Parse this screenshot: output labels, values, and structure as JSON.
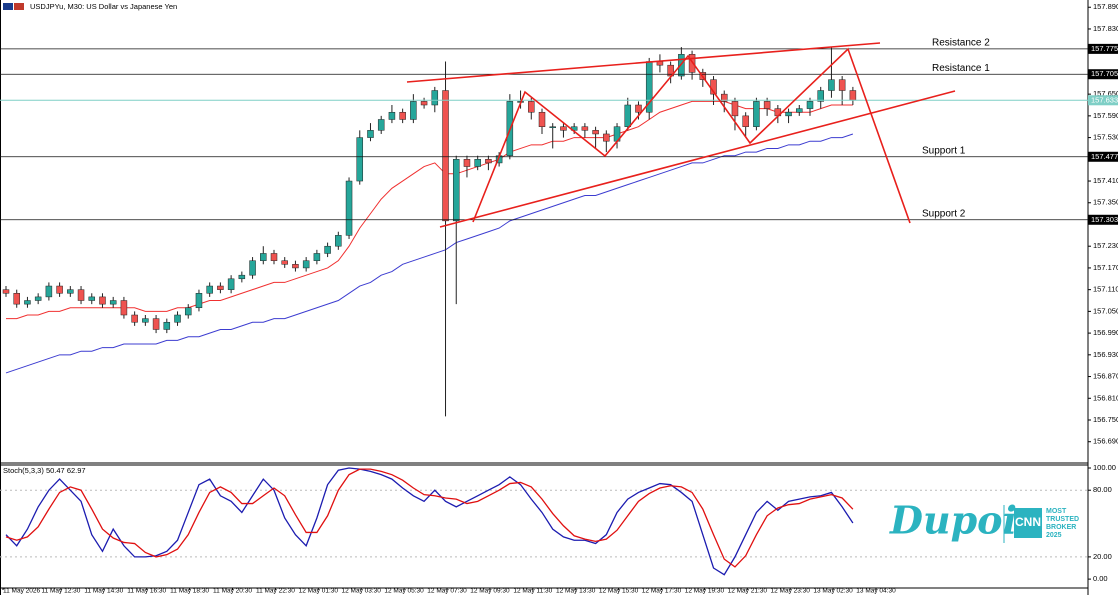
{
  "chart_data": [
    {
      "type": "candlestick",
      "title": "USDJPYu, M30: US Dollar vs Japanese Yen",
      "up_color": "#26a69a",
      "down_color": "#ef5350",
      "ylim": [
        156.634,
        157.91
      ],
      "yticks": [
        {
          "value": 157.89,
          "label": "157.890"
        },
        {
          "value": 157.83,
          "label": "157.830"
        },
        {
          "value": 157.65,
          "label": "157.650"
        },
        {
          "value": 157.59,
          "label": "157.590"
        },
        {
          "value": 157.53,
          "label": "157.530"
        },
        {
          "value": 157.41,
          "label": "157.410"
        },
        {
          "value": 157.35,
          "label": "157.350"
        },
        {
          "value": 157.23,
          "label": "157.230"
        },
        {
          "value": 157.17,
          "label": "157.170"
        },
        {
          "value": 157.11,
          "label": "157.110"
        },
        {
          "value": 157.05,
          "label": "157.050"
        },
        {
          "value": 156.99,
          "label": "156.990"
        },
        {
          "value": 156.93,
          "label": "156.930"
        },
        {
          "value": 156.87,
          "label": "156.870"
        },
        {
          "value": 156.81,
          "label": "156.810"
        },
        {
          "value": 156.75,
          "label": "156.750"
        },
        {
          "value": 156.69,
          "label": "156.690"
        }
      ],
      "x_labels": [
        "11 May 2026",
        "11 May 12:30",
        "11 May 14:30",
        "11 May 16:30",
        "11 May 18:30",
        "11 May 20:30",
        "11 May 22:30",
        "12 May 01:30",
        "12 May 03:30",
        "12 May 05:30",
        "12 May 07:30",
        "12 May 09:30",
        "12 May 11:30",
        "12 May 13:30",
        "12 May 15:30",
        "12 May 17:30",
        "12 May 19:30",
        "12 May 21:30",
        "12 May 23:30",
        "13 May 02:30",
        "13 May 04:30"
      ],
      "open": [
        157.11,
        157.1,
        157.07,
        157.08,
        157.09,
        157.12,
        157.1,
        157.11,
        157.08,
        157.09,
        157.07,
        157.08,
        157.04,
        157.02,
        157.03,
        157.0,
        157.02,
        157.04,
        157.06,
        157.1,
        157.12,
        157.11,
        157.14,
        157.15,
        157.19,
        157.21,
        157.19,
        157.18,
        157.17,
        157.19,
        157.21,
        157.23,
        157.26,
        157.41,
        157.53,
        157.55,
        157.58,
        157.6,
        157.58,
        157.63,
        157.62,
        157.66,
        157.3,
        157.47,
        157.45,
        157.47,
        157.46,
        157.48,
        157.63,
        157.63,
        157.6,
        157.56,
        157.56,
        157.55,
        157.56,
        157.55,
        157.54,
        157.52,
        157.56,
        157.62,
        157.6,
        157.74,
        157.73,
        157.7,
        157.76,
        157.71,
        157.69,
        157.65,
        157.63,
        157.59,
        157.56,
        157.63,
        157.61,
        157.59,
        157.6,
        157.61,
        157.63,
        157.66,
        157.69,
        157.66
      ],
      "high": [
        157.12,
        157.11,
        157.09,
        157.1,
        157.13,
        157.13,
        157.12,
        157.12,
        157.1,
        157.1,
        157.09,
        157.09,
        157.05,
        157.04,
        157.04,
        157.03,
        157.05,
        157.07,
        157.11,
        157.13,
        157.13,
        157.15,
        157.16,
        157.2,
        157.23,
        157.22,
        157.2,
        157.19,
        157.2,
        157.22,
        157.24,
        157.27,
        157.42,
        157.55,
        157.57,
        157.59,
        157.62,
        157.61,
        157.65,
        157.64,
        157.67,
        157.74,
        157.48,
        157.48,
        157.48,
        157.48,
        157.49,
        157.65,
        157.66,
        157.64,
        157.61,
        157.57,
        157.57,
        157.57,
        157.57,
        157.56,
        157.55,
        157.57,
        157.64,
        157.63,
        157.75,
        157.76,
        157.74,
        157.78,
        157.77,
        157.72,
        157.7,
        157.66,
        157.64,
        157.6,
        157.64,
        157.64,
        157.62,
        157.61,
        157.62,
        157.64,
        157.67,
        157.78,
        157.7,
        157.67
      ],
      "low": [
        157.09,
        157.06,
        157.06,
        157.07,
        157.08,
        157.09,
        157.09,
        157.07,
        157.07,
        157.06,
        157.06,
        157.03,
        157.01,
        157.01,
        156.99,
        156.99,
        157.01,
        157.03,
        157.05,
        157.09,
        157.1,
        157.1,
        157.13,
        157.14,
        157.18,
        157.18,
        157.17,
        157.16,
        157.16,
        157.18,
        157.2,
        157.22,
        157.25,
        157.4,
        157.52,
        157.54,
        157.57,
        157.57,
        157.57,
        157.61,
        157.6,
        156.76,
        157.07,
        157.42,
        157.44,
        157.44,
        157.45,
        157.47,
        157.61,
        157.58,
        157.54,
        157.5,
        157.53,
        157.54,
        157.53,
        157.5,
        157.49,
        157.5,
        157.55,
        157.58,
        157.58,
        157.71,
        157.68,
        157.69,
        157.69,
        157.67,
        157.62,
        157.6,
        157.55,
        157.53,
        157.55,
        157.59,
        157.57,
        157.57,
        157.59,
        157.59,
        157.61,
        157.64,
        157.62,
        157.62
      ],
      "close": [
        157.1,
        157.07,
        157.08,
        157.09,
        157.12,
        157.1,
        157.11,
        157.08,
        157.09,
        157.07,
        157.08,
        157.04,
        157.02,
        157.03,
        157.0,
        157.02,
        157.04,
        157.06,
        157.1,
        157.12,
        157.11,
        157.14,
        157.15,
        157.19,
        157.21,
        157.19,
        157.18,
        157.17,
        157.19,
        157.21,
        157.23,
        157.26,
        157.41,
        157.53,
        157.55,
        157.58,
        157.6,
        157.58,
        157.63,
        157.62,
        157.66,
        157.3,
        157.47,
        157.45,
        157.47,
        157.46,
        157.48,
        157.63,
        157.63,
        157.6,
        157.56,
        157.56,
        157.55,
        157.56,
        157.55,
        157.54,
        157.52,
        157.56,
        157.62,
        157.6,
        157.74,
        157.73,
        157.7,
        157.76,
        157.71,
        157.69,
        157.65,
        157.63,
        157.59,
        157.56,
        157.63,
        157.61,
        157.59,
        157.6,
        157.61,
        157.63,
        157.66,
        157.69,
        157.66,
        157.633
      ],
      "moving_averages": [
        {
          "color": "#f03030",
          "values": [
            157.03,
            157.03,
            157.04,
            157.04,
            157.05,
            157.05,
            157.06,
            157.06,
            157.06,
            157.06,
            157.06,
            157.06,
            157.06,
            157.05,
            157.05,
            157.05,
            157.06,
            157.06,
            157.07,
            157.08,
            157.08,
            157.09,
            157.1,
            157.11,
            157.12,
            157.13,
            157.13,
            157.14,
            157.15,
            157.16,
            157.17,
            157.19,
            157.23,
            157.28,
            157.32,
            157.36,
            157.39,
            157.41,
            157.43,
            157.45,
            157.46,
            157.43,
            157.43,
            157.44,
            157.45,
            157.46,
            157.47,
            157.49,
            157.5,
            157.51,
            157.51,
            157.52,
            157.52,
            157.53,
            157.53,
            157.53,
            157.53,
            157.54,
            157.55,
            157.56,
            157.58,
            157.6,
            157.61,
            157.62,
            157.63,
            157.63,
            157.63,
            157.63,
            157.62,
            157.61,
            157.61,
            157.61,
            157.6,
            157.6,
            157.6,
            157.6,
            157.61,
            157.62,
            157.62,
            157.62
          ]
        },
        {
          "color": "#3c3cd0",
          "values": [
            156.88,
            156.89,
            156.9,
            156.91,
            156.92,
            156.93,
            156.93,
            156.94,
            156.94,
            156.95,
            156.95,
            156.96,
            156.96,
            156.96,
            156.96,
            156.97,
            156.97,
            156.98,
            156.98,
            156.99,
            157.0,
            157.0,
            157.01,
            157.02,
            157.02,
            157.03,
            157.03,
            157.04,
            157.05,
            157.06,
            157.07,
            157.08,
            157.1,
            157.12,
            157.13,
            157.15,
            157.16,
            157.18,
            157.19,
            157.2,
            157.21,
            157.22,
            157.24,
            157.25,
            157.26,
            157.27,
            157.28,
            157.3,
            157.31,
            157.32,
            157.33,
            157.34,
            157.35,
            157.36,
            157.37,
            157.37,
            157.38,
            157.39,
            157.4,
            157.41,
            157.42,
            157.43,
            157.44,
            157.45,
            157.46,
            157.46,
            157.47,
            157.48,
            157.48,
            157.49,
            157.49,
            157.5,
            157.5,
            157.51,
            157.51,
            157.52,
            157.52,
            157.53,
            157.53,
            157.54
          ]
        }
      ],
      "levels": [
        {
          "label": "Resistance 2",
          "value": 157.775
        },
        {
          "label": "Resistance 1",
          "value": 157.705
        },
        {
          "label": "Support 1",
          "value": 157.477
        },
        {
          "label": "Support 2",
          "value": 157.303
        }
      ],
      "current_price": 157.633,
      "current_color": "#7fcfc6"
    },
    {
      "type": "line",
      "title": "Stoch(5,3,3)",
      "ylim": [
        -8,
        102.7
      ],
      "yticks": [
        {
          "value": 100,
          "label": "100.00"
        },
        {
          "value": 80,
          "label": "80.00"
        },
        {
          "value": 20,
          "label": "20.00"
        },
        {
          "value": 0,
          "label": "0.00"
        }
      ],
      "series": [
        {
          "color": "#1c1cb0",
          "values": [
            40,
            30,
            45,
            65,
            80,
            90,
            80,
            70,
            40,
            25,
            45,
            30,
            20,
            20,
            21,
            25,
            35,
            60,
            85,
            90,
            75,
            70,
            60,
            75,
            90,
            80,
            55,
            40,
            30,
            55,
            85,
            98,
            100,
            99,
            97,
            94,
            90,
            82,
            75,
            70,
            80,
            70,
            65,
            70,
            75,
            80,
            85,
            92,
            85,
            72,
            60,
            45,
            38,
            35,
            35,
            32,
            40,
            60,
            72,
            78,
            82,
            86,
            85,
            78,
            70,
            40,
            10,
            4,
            20,
            40,
            60,
            70,
            62,
            70,
            72,
            74,
            75,
            78,
            65,
            50.47
          ]
        },
        {
          "color": "#e01010",
          "values": [
            38,
            35,
            38,
            47,
            63,
            78,
            83,
            80,
            63,
            45,
            37,
            33,
            32,
            24,
            20,
            22,
            27,
            40,
            60,
            78,
            83,
            78,
            68,
            68,
            75,
            82,
            75,
            58,
            42,
            42,
            57,
            80,
            94,
            99,
            99,
            97,
            94,
            89,
            82,
            76,
            75,
            73,
            72,
            68,
            70,
            75,
            80,
            86,
            87,
            83,
            72,
            59,
            48,
            39,
            36,
            34,
            36,
            44,
            57,
            70,
            77,
            82,
            84,
            83,
            78,
            63,
            40,
            18,
            11,
            21,
            40,
            57,
            64,
            67,
            68,
            72,
            74,
            76,
            73,
            62.97
          ]
        }
      ]
    }
  ],
  "branding": {
    "logo": "Dupoin",
    "badge": "CNN",
    "tagline": [
      "MOST",
      "TRUSTED",
      "BROKER",
      "2025"
    ]
  }
}
